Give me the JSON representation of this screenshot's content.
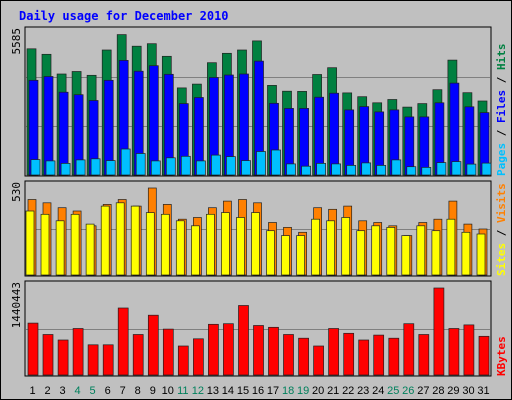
{
  "title": "Daily usage for December 2010",
  "chart_data": [
    {
      "type": "bar",
      "name": "hits-files-pages",
      "categories": [
        "1",
        "2",
        "3",
        "4",
        "5",
        "6",
        "7",
        "8",
        "9",
        "10",
        "11",
        "12",
        "13",
        "14",
        "15",
        "16",
        "17",
        "18",
        "19",
        "20",
        "21",
        "22",
        "23",
        "24",
        "25",
        "26",
        "27",
        "28",
        "29",
        "30",
        "31"
      ],
      "ymax_label": "5585",
      "ylim": [
        0,
        5585
      ],
      "series": [
        {
          "name": "Hits",
          "color": "#008040",
          "values": [
            5000,
            4780,
            4000,
            4100,
            3950,
            4950,
            5560,
            5100,
            5200,
            4700,
            3450,
            3600,
            4450,
            4820,
            4950,
            5310,
            3550,
            3320,
            3310,
            3980,
            4250,
            3250,
            3100,
            2860,
            2990,
            2690,
            2830,
            3380,
            4550,
            3260,
            2930
          ]
        },
        {
          "name": "Files",
          "color": "#0000ff",
          "values": [
            3750,
            3900,
            3280,
            3180,
            2950,
            3750,
            4540,
            4110,
            4330,
            3990,
            2830,
            3070,
            3860,
            3960,
            4000,
            4510,
            2840,
            2640,
            2640,
            3080,
            3240,
            2580,
            2710,
            2500,
            2580,
            2300,
            2300,
            2860,
            3640,
            2700,
            2470
          ]
        },
        {
          "name": "Pages",
          "color": "#00c0ff",
          "values": [
            610,
            560,
            460,
            600,
            640,
            570,
            1030,
            850,
            560,
            680,
            740,
            560,
            790,
            730,
            570,
            930,
            990,
            440,
            350,
            460,
            440,
            380,
            480,
            380,
            600,
            330,
            300,
            490,
            530,
            430,
            470
          ]
        }
      ]
    },
    {
      "type": "bar",
      "name": "sites-visits",
      "categories": [
        "1",
        "2",
        "3",
        "4",
        "5",
        "6",
        "7",
        "8",
        "9",
        "10",
        "11",
        "12",
        "13",
        "14",
        "15",
        "16",
        "17",
        "18",
        "19",
        "20",
        "21",
        "22",
        "23",
        "24",
        "25",
        "26",
        "27",
        "28",
        "29",
        "30",
        "31"
      ],
      "ymax_label": "530",
      "ylim": [
        0,
        530
      ],
      "series": [
        {
          "name": "Visits",
          "color": "#ff8000",
          "values": [
            460,
            440,
            410,
            390,
            300,
            430,
            460,
            420,
            530,
            430,
            340,
            350,
            410,
            450,
            460,
            440,
            320,
            290,
            260,
            410,
            400,
            420,
            330,
            320,
            300,
            240,
            320,
            340,
            450,
            310,
            280
          ]
        },
        {
          "name": "Sites",
          "color": "#ffff00",
          "values": [
            390,
            370,
            330,
            370,
            310,
            420,
            440,
            420,
            380,
            370,
            330,
            300,
            370,
            380,
            350,
            380,
            270,
            240,
            240,
            340,
            330,
            350,
            270,
            300,
            290,
            240,
            300,
            270,
            340,
            260,
            250
          ]
        }
      ]
    },
    {
      "type": "bar",
      "name": "kbytes",
      "categories": [
        "1",
        "2",
        "3",
        "4",
        "5",
        "6",
        "7",
        "8",
        "9",
        "10",
        "11",
        "12",
        "13",
        "14",
        "15",
        "16",
        "17",
        "18",
        "19",
        "20",
        "21",
        "22",
        "23",
        "24",
        "25",
        "26",
        "27",
        "28",
        "29",
        "30",
        "31"
      ],
      "ymax_label": "1440443",
      "ylim": [
        0,
        1440443
      ],
      "series": [
        {
          "name": "KBytes",
          "color": "#ff0000",
          "values": [
            860000,
            670000,
            580000,
            770000,
            500000,
            500000,
            1110000,
            670000,
            990000,
            760000,
            480000,
            600000,
            840000,
            850000,
            1150000,
            820000,
            790000,
            670000,
            610000,
            480000,
            770000,
            690000,
            580000,
            660000,
            610000,
            850000,
            670000,
            1440443,
            770000,
            830000,
            640000
          ]
        }
      ]
    }
  ],
  "day_label_colors": {
    "weekday": "#000000",
    "weekend": "#00805c"
  },
  "weekend_days": [
    4,
    5,
    11,
    12,
    18,
    19,
    25,
    26
  ]
}
